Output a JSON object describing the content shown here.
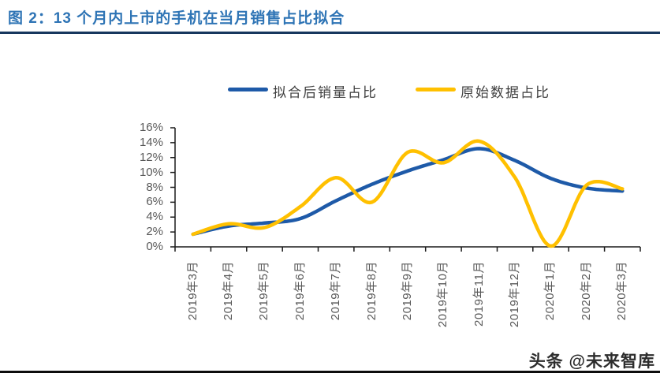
{
  "figure": {
    "title": "图 2：13 个月内上市的手机在当月销售占比拟合"
  },
  "watermark": "头条 @未来智库",
  "colors": {
    "title_text": "#2E74B5",
    "title_rule": "#17375E",
    "fitted_line": "#1E5AA8",
    "raw_line": "#FFC000",
    "axis": "#1a1a1a",
    "tick_label": "#595959"
  },
  "legend": {
    "items": [
      {
        "label": "拟合后销量占比",
        "color": "#1E5AA8"
      },
      {
        "label": "原始数据占比",
        "color": "#FFC000"
      }
    ]
  },
  "chart_data": {
    "type": "line",
    "title": "13 个月内上市的手机在当月销售占比拟合",
    "xlabel": "",
    "ylabel": "",
    "ylim": [
      0,
      16
    ],
    "ytick_step": 2,
    "ytick_labels": [
      "0%",
      "2%",
      "4%",
      "6%",
      "8%",
      "10%",
      "12%",
      "14%",
      "16%"
    ],
    "grid": false,
    "smooth": true,
    "legend_position": "top",
    "categories": [
      "2019年3月",
      "2019年4月",
      "2019年5月",
      "2019年6月",
      "2019年7月",
      "2019年8月",
      "2019年9月",
      "2019年10月",
      "2019年11月",
      "2019年12月",
      "2020年1月",
      "2020年2月",
      "2020年3月"
    ],
    "series": [
      {
        "name": "拟合后销量占比",
        "color": "#1E5AA8",
        "values": [
          1.7,
          2.8,
          3.2,
          3.8,
          6.2,
          8.4,
          10.2,
          11.7,
          13.2,
          11.6,
          9.2,
          7.9,
          7.5
        ]
      },
      {
        "name": "原始数据占比",
        "color": "#FFC000",
        "values": [
          1.7,
          3.1,
          2.6,
          5.4,
          9.3,
          6.0,
          12.7,
          11.3,
          14.2,
          9.3,
          0.1,
          8.3,
          7.8
        ]
      }
    ]
  }
}
